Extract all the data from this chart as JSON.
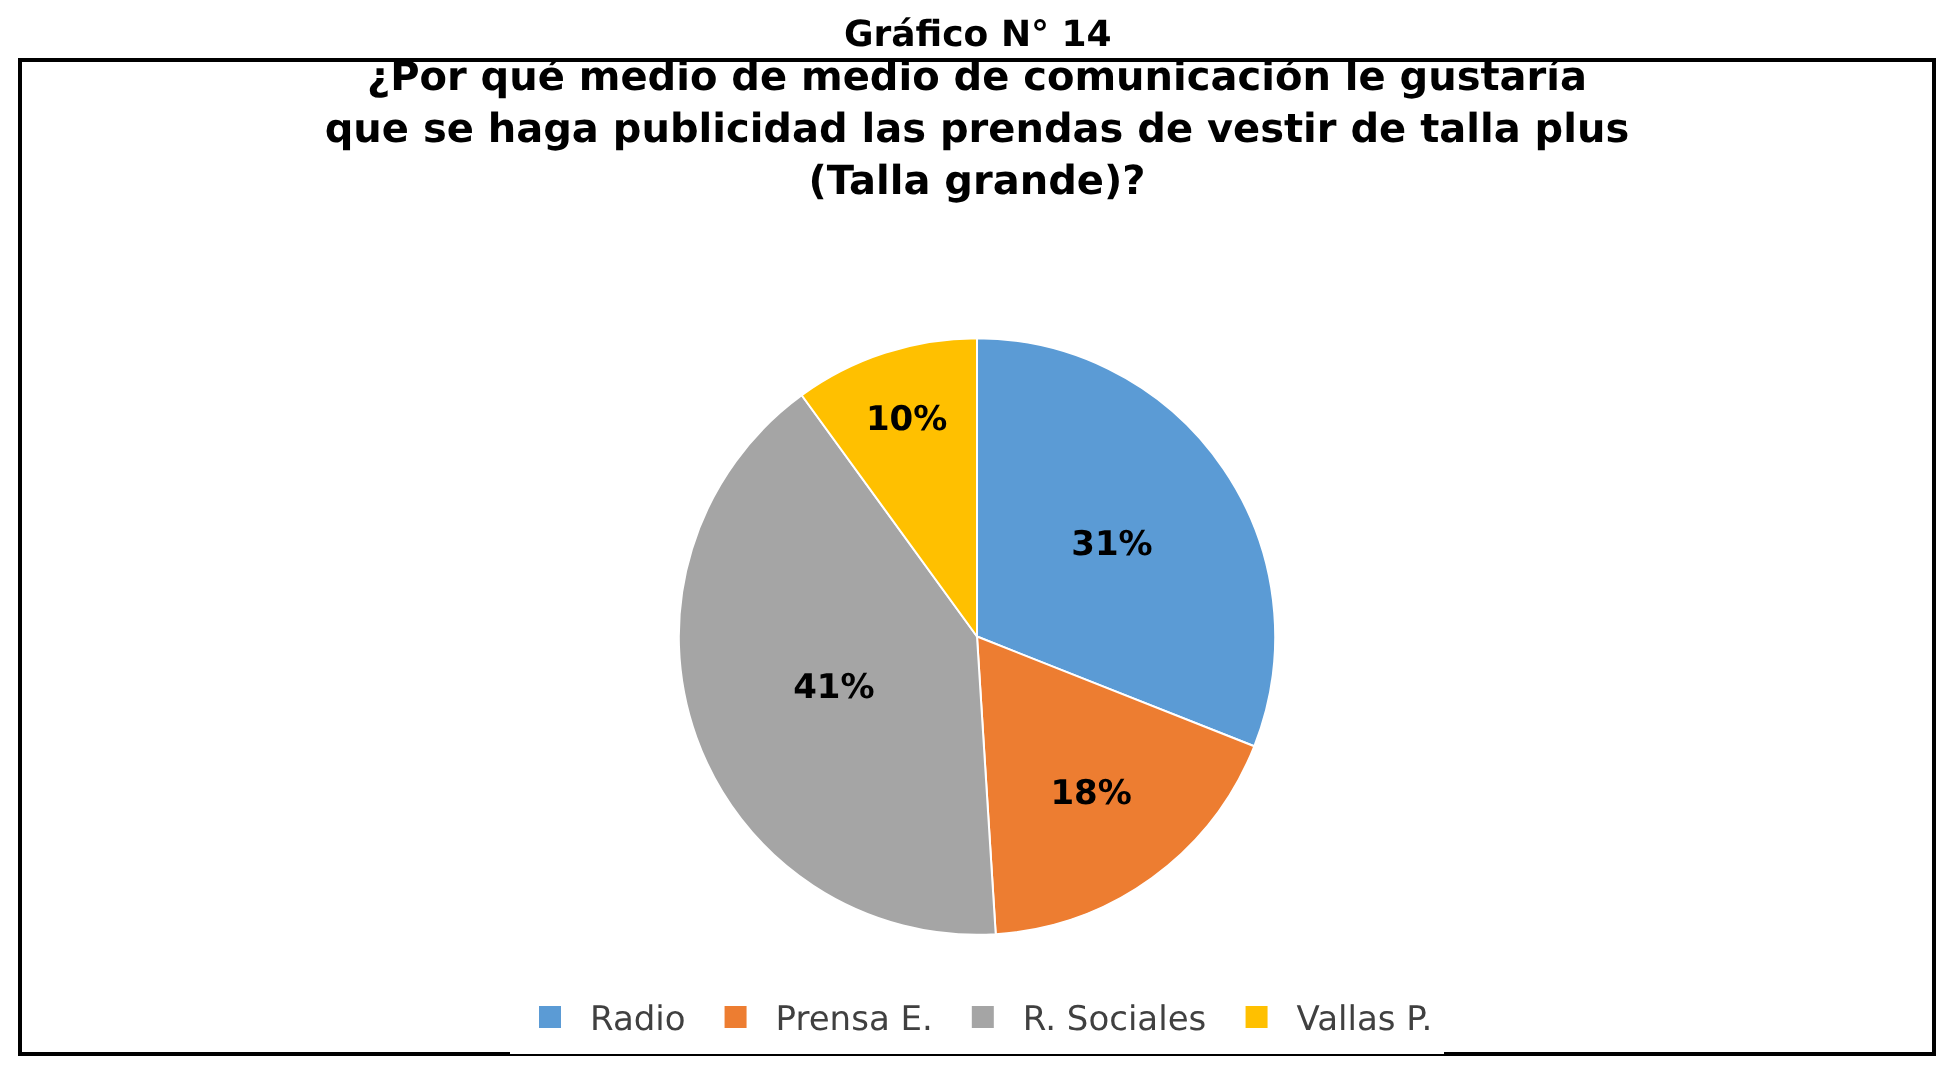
{
  "chart_data": {
    "type": "pie",
    "title": "¿Por qué medio de medio de comunicación le gustaría\nque se haga publicidad las prendas de vestir de talla plus\n(Talla grande)?",
    "annotations": [
      "Gráfico N° 14"
    ],
    "categories": [
      "Radio",
      "Prensa E.",
      "R. Sociales",
      "Vallas P."
    ],
    "values": [
      31,
      18,
      41,
      10
    ],
    "colors": [
      "#5b9bd5",
      "#ed7d31",
      "#a5a5a5",
      "#ffc000"
    ],
    "value_labels": [
      "31%",
      "18%",
      "41%",
      "10%"
    ],
    "legend": "bottom"
  }
}
